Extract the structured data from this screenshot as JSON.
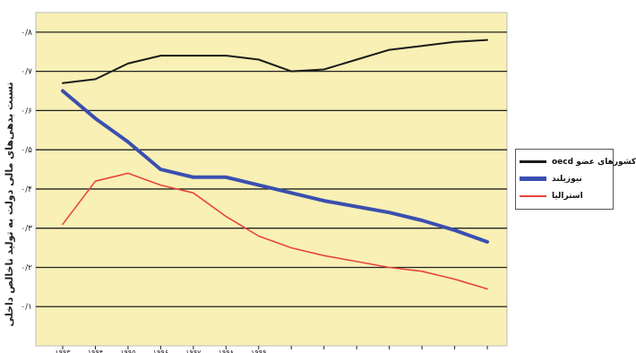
{
  "chart_data": {
    "type": "line",
    "ylabel": "نسبت بدهی‌های مالی دولت به تولید ناخالص داخلی",
    "ylim": [
      0,
      0.85
    ],
    "yticks": [
      {
        "value": 0.1,
        "label": "۰/۱"
      },
      {
        "value": 0.2,
        "label": "۰/۲"
      },
      {
        "value": 0.3,
        "label": "۰/۳"
      },
      {
        "value": 0.4,
        "label": "۰/۴"
      },
      {
        "value": 0.5,
        "label": "۰/۵"
      },
      {
        "value": 0.6,
        "label": "۰/۶"
      },
      {
        "value": 0.7,
        "label": "۰/۷"
      },
      {
        "value": 0.8,
        "label": "۰/۸"
      }
    ],
    "x_tick_labels": [
      "۱۹۹۳",
      "۱۹۹۴",
      "۱۹۹۵",
      "۱۹۹۶",
      "۱۹۹۷",
      "۱۹۹۸",
      "۱۹۹۹",
      "",
      "",
      "",
      "",
      "",
      "",
      ""
    ],
    "grid": true,
    "legend_position": "right",
    "series": [
      {
        "name": "کشورهای عضو oecd",
        "color": "#1a1a1a",
        "values": [
          0.67,
          0.68,
          0.72,
          0.74,
          0.74,
          0.74,
          0.73,
          0.7,
          0.705,
          0.73,
          0.755,
          0.765,
          0.775,
          0.78
        ]
      },
      {
        "name": "نیوزیلند",
        "color": "#3a4fb0",
        "values": [
          0.65,
          0.58,
          0.52,
          0.45,
          0.43,
          0.43,
          0.41,
          0.39,
          0.37,
          0.355,
          0.34,
          0.32,
          0.295,
          0.265
        ]
      },
      {
        "name": "استرالیا",
        "color": "#e8453c",
        "values": [
          0.31,
          0.42,
          0.44,
          0.41,
          0.39,
          0.33,
          0.28,
          0.25,
          0.23,
          0.215,
          0.2,
          0.19,
          0.17,
          0.145
        ]
      }
    ]
  }
}
